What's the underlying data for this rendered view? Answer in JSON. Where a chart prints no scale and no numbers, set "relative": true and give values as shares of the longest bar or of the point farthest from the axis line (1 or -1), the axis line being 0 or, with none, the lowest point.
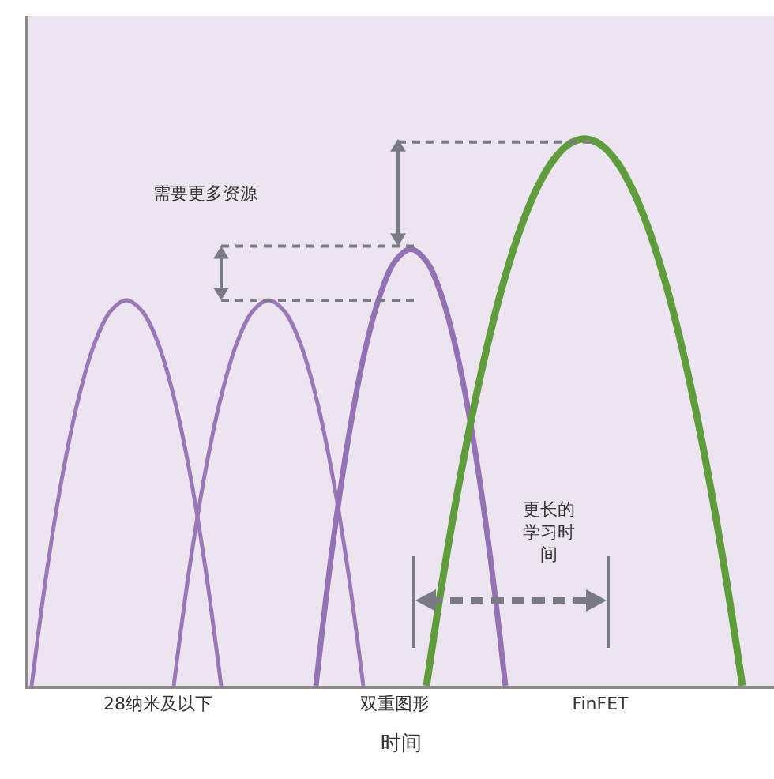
{
  "chart_data": {
    "type": "line",
    "relative": true,
    "xlabel": "时间",
    "grid": false,
    "marker": "none",
    "categories": [
      null,
      null,
      null,
      null,
      null,
      null,
      null,
      null,
      "28纳米及以下",
      null,
      null,
      null,
      null,
      null,
      null,
      null,
      null,
      null,
      null,
      null,
      null,
      null,
      null,
      "双重图形",
      null,
      null,
      null,
      null,
      null,
      null,
      null,
      null,
      null,
      null,
      null,
      null,
      "FinFET",
      null,
      null,
      null,
      null,
      null,
      null,
      null,
      null,
      null,
      null
    ],
    "series": [
      {
        "color": "#9a78b8",
        "values": [
          0,
          0.216,
          0.392,
          0.529,
          0.627,
          0.685,
          0.705,
          0.685,
          0.627,
          0.529,
          0.392,
          0.216,
          0,
          null,
          null,
          null,
          null,
          null,
          null,
          null,
          null,
          null,
          null,
          null,
          null,
          null,
          null,
          null,
          null,
          null,
          null,
          null,
          null,
          null,
          null,
          null,
          null,
          null,
          null,
          null,
          null,
          null,
          null,
          null,
          null,
          null,
          null
        ]
      },
      {
        "color": "#9a78b8",
        "values": [
          null,
          null,
          null,
          null,
          null,
          null,
          null,
          null,
          null,
          0,
          0.216,
          0.392,
          0.529,
          0.627,
          0.685,
          0.705,
          0.685,
          0.627,
          0.529,
          0.392,
          0.216,
          0,
          null,
          null,
          null,
          null,
          null,
          null,
          null,
          null,
          null,
          null,
          null,
          null,
          null,
          null,
          null,
          null,
          null,
          null,
          null,
          null,
          null,
          null,
          null,
          null,
          null
        ]
      },
      {
        "color": "#9470b4",
        "values": [
          null,
          null,
          null,
          null,
          null,
          null,
          null,
          null,
          null,
          null,
          null,
          null,
          null,
          null,
          null,
          null,
          null,
          null,
          0,
          0.244,
          0.443,
          0.599,
          0.709,
          0.776,
          0.798,
          0.776,
          0.709,
          0.599,
          0.443,
          0.244,
          0,
          null,
          null,
          null,
          null,
          null,
          null,
          null,
          null,
          null,
          null,
          null,
          null,
          null,
          null,
          null,
          null
        ]
      },
      {
        "color": "#5e9c3c",
        "values": [
          null,
          null,
          null,
          null,
          null,
          null,
          null,
          null,
          null,
          null,
          null,
          null,
          null,
          null,
          null,
          null,
          null,
          null,
          null,
          null,
          null,
          null,
          null,
          null,
          null,
          0,
          0.19,
          0.36,
          0.51,
          0.64,
          0.75,
          0.84,
          0.91,
          0.96,
          0.99,
          1,
          0.99,
          0.96,
          0.91,
          0.84,
          0.75,
          0.64,
          0.51,
          0.36,
          0.19,
          0,
          null
        ]
      }
    ],
    "annotations": [
      "需要更多资源",
      "更长的学习时间"
    ]
  }
}
